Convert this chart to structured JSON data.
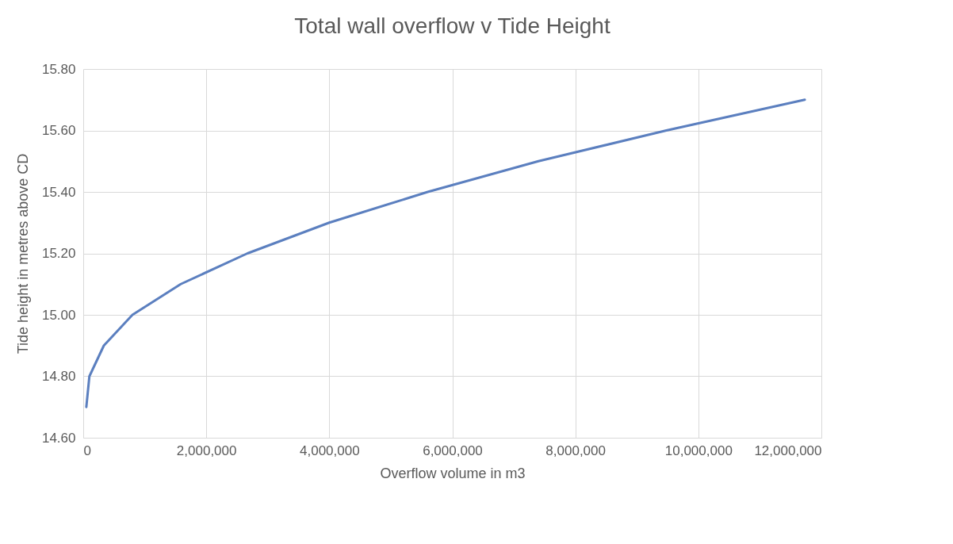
{
  "chart_data": {
    "type": "line",
    "title": "Total wall overflow v Tide Height",
    "xlabel": "Overflow volume in m3",
    "ylabel": "Tide height in metres above CD",
    "x": [
      50000,
      100000,
      335000,
      800000,
      1585000,
      2670000,
      4000000,
      5600000,
      7400000,
      9480000,
      11730000
    ],
    "series": [
      {
        "color": "#5b7fbf",
        "values": [
          14.7,
          14.8,
          14.9,
          15.0,
          15.1,
          15.2,
          15.3,
          15.4,
          15.5,
          15.6,
          15.7
        ]
      }
    ],
    "xlim": [
      0,
      12000000
    ],
    "xticks": [
      {
        "value": 0,
        "label": "0"
      },
      {
        "value": 2000000,
        "label": "2,000,000"
      },
      {
        "value": 4000000,
        "label": "4,000,000"
      },
      {
        "value": 6000000,
        "label": "6,000,000"
      },
      {
        "value": 8000000,
        "label": "8,000,000"
      },
      {
        "value": 10000000,
        "label": "10,000,000"
      },
      {
        "value": 12000000,
        "label": "12,000,000"
      }
    ],
    "ylim": [
      14.6,
      15.8
    ],
    "yticks": [
      {
        "value": 14.6,
        "label": "14.60"
      },
      {
        "value": 14.8,
        "label": "14.80"
      },
      {
        "value": 15.0,
        "label": "15.00"
      },
      {
        "value": 15.2,
        "label": "15.20"
      },
      {
        "value": 15.4,
        "label": "15.40"
      },
      {
        "value": 15.6,
        "label": "15.60"
      },
      {
        "value": 15.8,
        "label": "15.80"
      }
    ],
    "grid": true,
    "marker": "none",
    "line_style": "solid"
  }
}
